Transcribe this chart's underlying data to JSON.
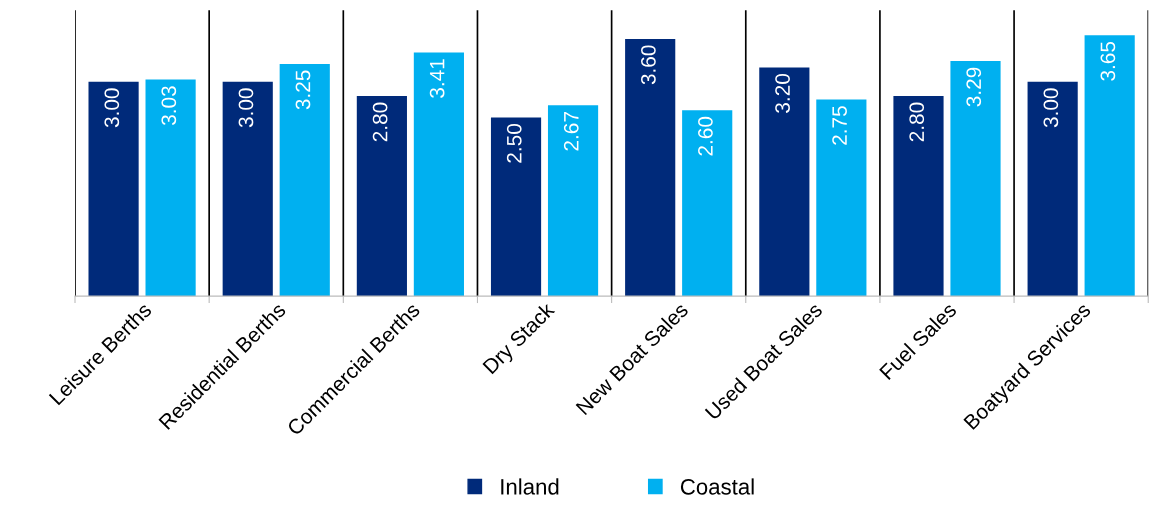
{
  "chart_data": {
    "type": "bar",
    "categories": [
      "Leisure Berths",
      "Residential Berths",
      "Commercial Berths",
      "Dry Stack",
      "New Boat Sales",
      "Used Boat Sales",
      "Fuel Sales",
      "Boatyard Services"
    ],
    "series": [
      {
        "name": "Inland",
        "color": "#002a7a",
        "values": [
          3.0,
          3.0,
          2.8,
          2.5,
          3.6,
          3.2,
          2.8,
          3.0
        ],
        "value_labels": [
          "3.00",
          "3.00",
          "2.80",
          "2.50",
          "3.60",
          "3.20",
          "2.80",
          "3.00"
        ]
      },
      {
        "name": "Coastal",
        "color": "#00b0f0",
        "values": [
          3.03,
          3.25,
          3.41,
          2.67,
          2.6,
          2.75,
          3.29,
          3.65
        ],
        "value_labels": [
          "3.03",
          "3.25",
          "3.41",
          "2.67",
          "2.60",
          "2.75",
          "3.29",
          "3.65"
        ]
      }
    ],
    "ylim": [
      0,
      4
    ],
    "tick_labels": "x",
    "grid": "x",
    "legend": "bottom"
  }
}
